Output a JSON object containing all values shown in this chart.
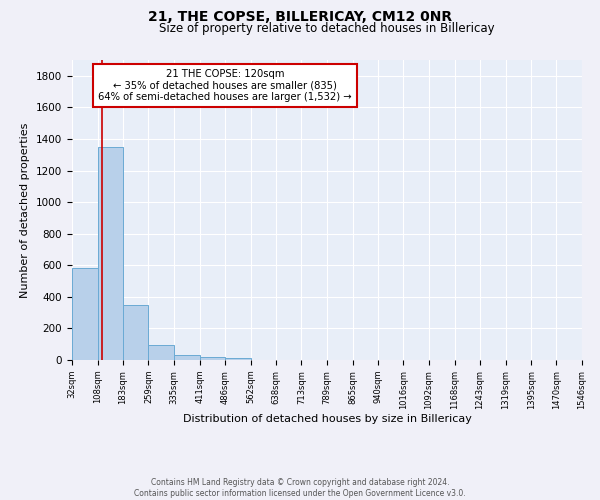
{
  "title": "21, THE COPSE, BILLERICAY, CM12 0NR",
  "subtitle": "Size of property relative to detached houses in Billericay",
  "xlabel": "Distribution of detached houses by size in Billericay",
  "ylabel": "Number of detached properties",
  "footer_line1": "Contains HM Land Registry data © Crown copyright and database right 2024.",
  "footer_line2": "Contains public sector information licensed under the Open Government Licence v3.0.",
  "annotation_line1": "21 THE COPSE: 120sqm",
  "annotation_line2": "← 35% of detached houses are smaller (835)",
  "annotation_line3": "64% of semi-detached houses are larger (1,532) →",
  "bin_edges": [
    32,
    108,
    183,
    259,
    335,
    411,
    486,
    562,
    638,
    713,
    789,
    865,
    940,
    1016,
    1092,
    1168,
    1243,
    1319,
    1395,
    1470,
    1546
  ],
  "bin_counts": [
    580,
    1350,
    350,
    95,
    30,
    20,
    15,
    0,
    0,
    0,
    0,
    0,
    0,
    0,
    0,
    0,
    0,
    0,
    0,
    0
  ],
  "property_size": 120,
  "bar_color": "#b8d0ea",
  "bar_edge_color": "#6aaad4",
  "vline_color": "#cc0000",
  "annotation_box_color": "#ffffff",
  "annotation_box_edge": "#cc0000",
  "background_color": "#e8eef8",
  "fig_background": "#f0f0f8",
  "ylim": [
    0,
    1900
  ],
  "yticks": [
    0,
    200,
    400,
    600,
    800,
    1000,
    1200,
    1400,
    1600,
    1800
  ]
}
